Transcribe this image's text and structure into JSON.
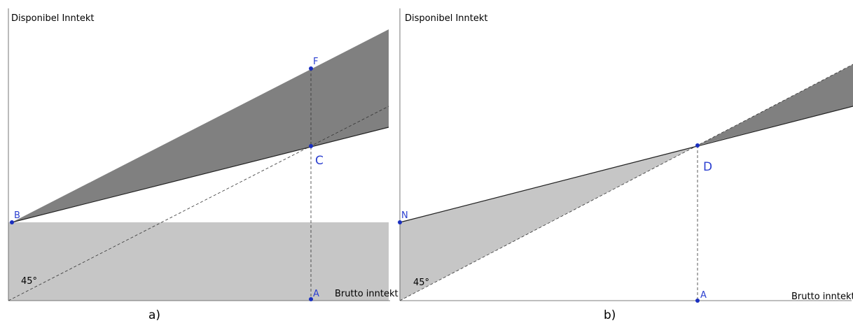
{
  "panels": [
    {
      "y_axis_label": "Disponibel Inntekt",
      "x_axis_label": "Brutto inntekt",
      "points": [
        "B",
        "F",
        "C",
        "A"
      ],
      "angle_label": "45°",
      "caption": "a)"
    },
    {
      "y_axis_label": "Disponibel Inntekt",
      "x_axis_label": "Brutto inntekt",
      "points": [
        "N",
        "D",
        "A"
      ],
      "angle_label": "45°",
      "caption": "b)"
    }
  ]
}
